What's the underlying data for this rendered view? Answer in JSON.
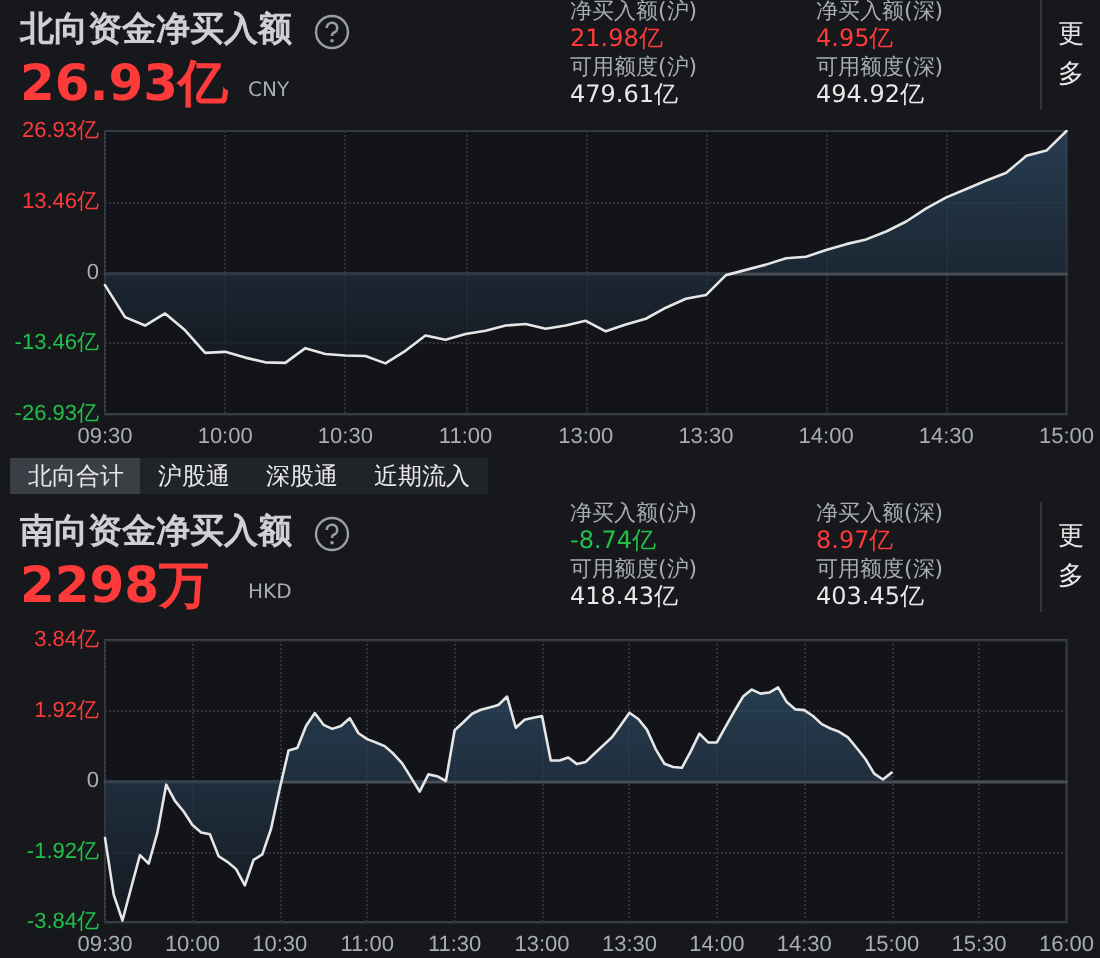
{
  "chart_data": [
    {
      "type": "area",
      "title": "北向资金净买入额",
      "subtitle": "26.93亿",
      "annotations": [
        "CNY",
        "净买入额(沪)",
        "21.98亿",
        "可用额度(沪)",
        "479.61亿",
        "净买入额(深)",
        "4.95亿",
        "可用额度(深)",
        "494.92亿",
        "更多",
        "北向合计",
        "沪股通",
        "深股通",
        "近期流入"
      ],
      "categories": [
        "09:30",
        null,
        null,
        null,
        null,
        null,
        "10:00",
        null,
        null,
        null,
        null,
        null,
        "10:30",
        null,
        null,
        null,
        null,
        null,
        "11:00",
        null,
        null,
        null,
        null,
        null,
        "13:00",
        null,
        null,
        null,
        null,
        null,
        "13:30",
        null,
        null,
        null,
        null,
        null,
        "14:00",
        null,
        null,
        null,
        null,
        null,
        "14:30",
        null,
        null,
        null,
        null,
        null,
        "15:00"
      ],
      "series": [
        {
          "color": "#e6e6e6",
          "values": [
            -2.4,
            -8.5,
            -10.1,
            -7.8,
            -11.0,
            -15.3,
            -15.1,
            -16.2,
            -17.1,
            -17.2,
            -14.4,
            -15.5,
            -15.8,
            -15.9,
            -17.3,
            -14.9,
            -12.0,
            -12.8,
            -11.7,
            -11.1,
            -10.1,
            -9.8,
            -10.7,
            -10.1,
            -9.2,
            -11.2,
            -9.9,
            -8.8,
            -6.7,
            -5.0,
            -4.3,
            -0.5,
            0.5,
            1.5,
            2.7,
            3.0,
            4.3,
            5.4,
            6.3,
            7.8,
            9.7,
            12.2,
            14.3,
            15.9,
            17.5,
            19.0,
            22.2,
            23.2,
            26.93
          ]
        }
      ],
      "ylim": [
        -26.93,
        26.93
      ],
      "yticks": [
        {
          "value": -26.93,
          "label": "-26.93亿"
        },
        {
          "value": -13.46,
          "label": "-13.46亿"
        },
        0,
        {
          "value": 13.46,
          "label": "13.46亿"
        },
        {
          "value": 26.93,
          "label": "26.93亿"
        }
      ],
      "grid": true,
      "marker": "none",
      "line_style": "solid"
    },
    {
      "type": "area",
      "title": "南向资金净买入额",
      "subtitle": "2298万",
      "annotations": [
        "HKD",
        "净买入额(沪)",
        "-8.74亿",
        "可用额度(沪)",
        "418.43亿",
        "净买入额(深)",
        "8.97亿",
        "可用额度(深)",
        "403.45亿",
        "更多"
      ],
      "categories": [
        "09:30",
        null,
        null,
        null,
        null,
        null,
        null,
        null,
        null,
        null,
        "10:00",
        null,
        null,
        null,
        null,
        null,
        null,
        null,
        null,
        null,
        "10:30",
        null,
        null,
        null,
        null,
        null,
        null,
        null,
        null,
        null,
        "11:00",
        null,
        null,
        null,
        null,
        null,
        null,
        null,
        null,
        null,
        "11:30",
        null,
        null,
        null,
        null,
        null,
        null,
        null,
        null,
        null,
        "13:00",
        null,
        null,
        null,
        null,
        null,
        null,
        null,
        null,
        null,
        "13:30",
        null,
        null,
        null,
        null,
        null,
        null,
        null,
        null,
        null,
        "14:00",
        null,
        null,
        null,
        null,
        null,
        null,
        null,
        null,
        null,
        "14:30",
        null,
        null,
        null,
        null,
        null,
        null,
        null,
        null,
        null,
        "15:00",
        null,
        null,
        null,
        null,
        null,
        null,
        null,
        null,
        null,
        "15:30",
        null,
        null,
        null,
        null,
        null,
        null,
        null,
        null,
        null,
        "16:00"
      ],
      "series": [
        {
          "color": "#e6e6e6",
          "values": [
            -1.55,
            -3.1,
            -3.8,
            -2.9,
            -2.02,
            -2.25,
            -1.4,
            -0.1,
            -0.54,
            -0.83,
            -1.2,
            -1.4,
            -1.45,
            -2.05,
            -2.2,
            -2.4,
            -2.84,
            -2.15,
            -2.0,
            -1.3,
            -0.2,
            0.83,
            0.9,
            1.5,
            1.85,
            1.53,
            1.42,
            1.5,
            1.71,
            1.3,
            1.14,
            1.05,
            0.95,
            0.74,
            0.48,
            0.1,
            -0.29,
            0.18,
            0.13,
            0.0,
            1.38,
            1.6,
            1.83,
            1.94,
            2.0,
            2.07,
            2.3,
            1.45,
            1.67,
            1.72,
            1.77,
            0.56,
            0.56,
            0.64,
            0.46,
            0.52,
            0.75,
            0.97,
            1.19,
            1.52,
            1.86,
            1.69,
            1.4,
            0.87,
            0.47,
            0.38,
            0.36,
            0.8,
            1.29,
            1.05,
            1.05,
            1.48,
            1.9,
            2.3,
            2.49,
            2.38,
            2.41,
            2.55,
            2.15,
            1.95,
            1.93,
            1.77,
            1.55,
            1.43,
            1.34,
            1.19,
            0.9,
            0.6,
            0.2,
            0.04,
            0.23,
            null,
            null,
            null,
            null,
            null,
            null,
            null,
            null,
            null,
            null,
            null,
            null,
            null,
            null,
            null,
            null,
            null,
            null,
            null,
            null
          ]
        }
      ],
      "ylim": [
        -3.84,
        3.84
      ],
      "yticks": [
        {
          "value": -3.84,
          "label": "-3.84亿"
        },
        {
          "value": -1.92,
          "label": "-1.92亿"
        },
        0,
        {
          "value": 1.92,
          "label": "1.92亿"
        },
        {
          "value": 3.84,
          "label": "3.84亿"
        }
      ],
      "grid": true,
      "marker": "none",
      "line_style": "solid"
    }
  ]
}
